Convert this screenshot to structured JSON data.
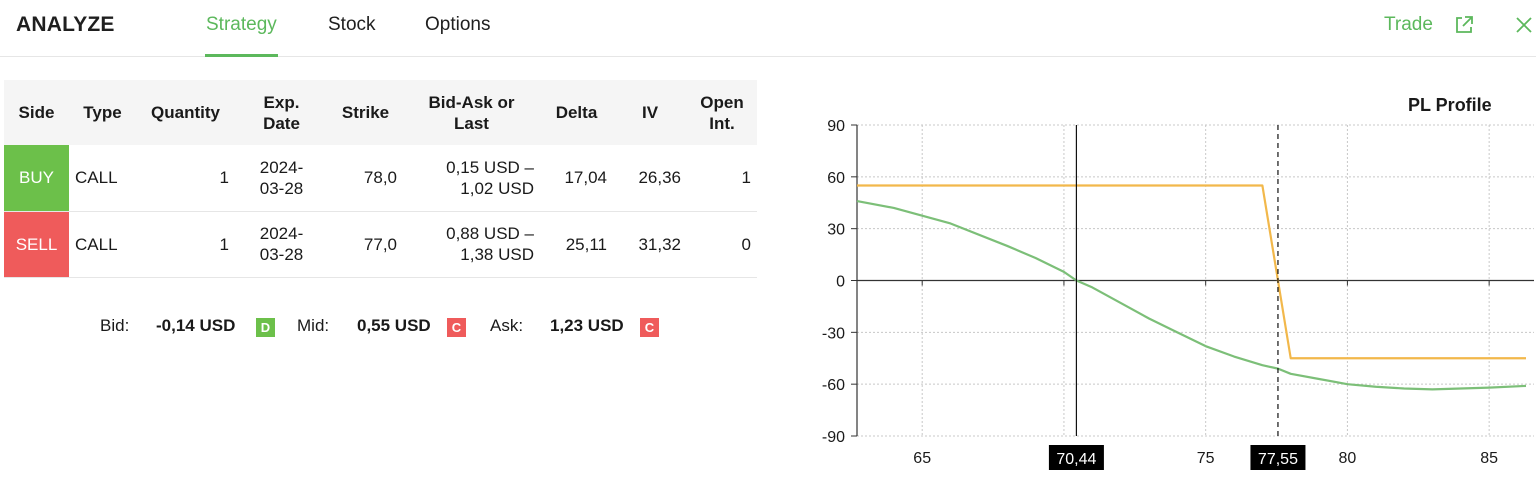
{
  "header": {
    "app_title": "ANALYZE",
    "tabs": [
      {
        "label": "Strategy",
        "active": true
      },
      {
        "label": "Stock",
        "active": false
      },
      {
        "label": "Options",
        "active": false
      }
    ],
    "trade_label": "Trade",
    "icons": {
      "external": "external-link-icon",
      "close": "close-icon"
    },
    "accent_color": "#5cb85c"
  },
  "table": {
    "headers": {
      "side": "Side",
      "type": "Type",
      "quantity": "Quantity",
      "exp_date_1": "Exp.",
      "exp_date_2": "Date",
      "strike": "Strike",
      "bidask_1": "Bid-Ask or",
      "bidask_2": "Last",
      "delta": "Delta",
      "iv": "IV",
      "open_int_1": "Open",
      "open_int_2": "Int."
    },
    "rows": [
      {
        "side": "BUY",
        "type": "CALL",
        "quantity": "1",
        "exp_1": "2024-",
        "exp_2": "03-28",
        "strike": "78,0",
        "bidask_1": "0,15 USD –",
        "bidask_2": "1,02 USD",
        "delta": "17,04",
        "iv": "26,36",
        "open_int": "1"
      },
      {
        "side": "SELL",
        "type": "CALL",
        "quantity": "1",
        "exp_1": "2024-",
        "exp_2": "03-28",
        "strike": "77,0",
        "bidask_1": "0,88 USD –",
        "bidask_2": "1,38 USD",
        "delta": "25,11",
        "iv": "31,32",
        "open_int": "0"
      }
    ],
    "side_colors": {
      "buy": "#6cc04a",
      "sell": "#ef5b5b"
    }
  },
  "summary": {
    "bid_label": "Bid:",
    "bid_value": "-0,14 USD",
    "bid_badge": "D",
    "mid_label": "Mid:",
    "mid_value": "0,55 USD",
    "mid_badge": "C",
    "ask_label": "Ask:",
    "ask_value": "1,23 USD",
    "ask_badge": "C"
  },
  "chart_data": {
    "type": "line",
    "title": "PL Profile",
    "xlim": [
      62.7,
      86.3
    ],
    "ylim": [
      -90,
      90
    ],
    "x_ticks": [
      "65",
      "75",
      "80",
      "85"
    ],
    "y_ticks": [
      "90",
      "60",
      "30",
      "0",
      "-30",
      "-60",
      "-90"
    ],
    "grid": true,
    "markers": [
      {
        "x": 70.44,
        "label": "70,44",
        "style": "solid"
      },
      {
        "x": 77.55,
        "label": "77,55",
        "style": "dashed"
      }
    ],
    "series": [
      {
        "color": "#f2b84b",
        "x": [
          62.7,
          77.0,
          78.0,
          86.3
        ],
        "y": [
          55,
          55,
          -45,
          -45
        ]
      },
      {
        "color": "#7cbf78",
        "x": [
          62.7,
          64,
          66,
          68,
          69,
          70,
          70.44,
          71,
          72,
          73,
          74,
          75,
          76,
          77,
          77.55,
          78,
          79,
          80,
          81,
          82,
          83,
          84,
          85,
          86.3
        ],
        "y": [
          46,
          42,
          33,
          20,
          13,
          5,
          0,
          -4,
          -13,
          -22,
          -30,
          -38,
          -44,
          -49,
          -51,
          -54,
          -57,
          -60,
          -61.5,
          -62.5,
          -63,
          -62.5,
          -62,
          -61
        ]
      }
    ]
  }
}
